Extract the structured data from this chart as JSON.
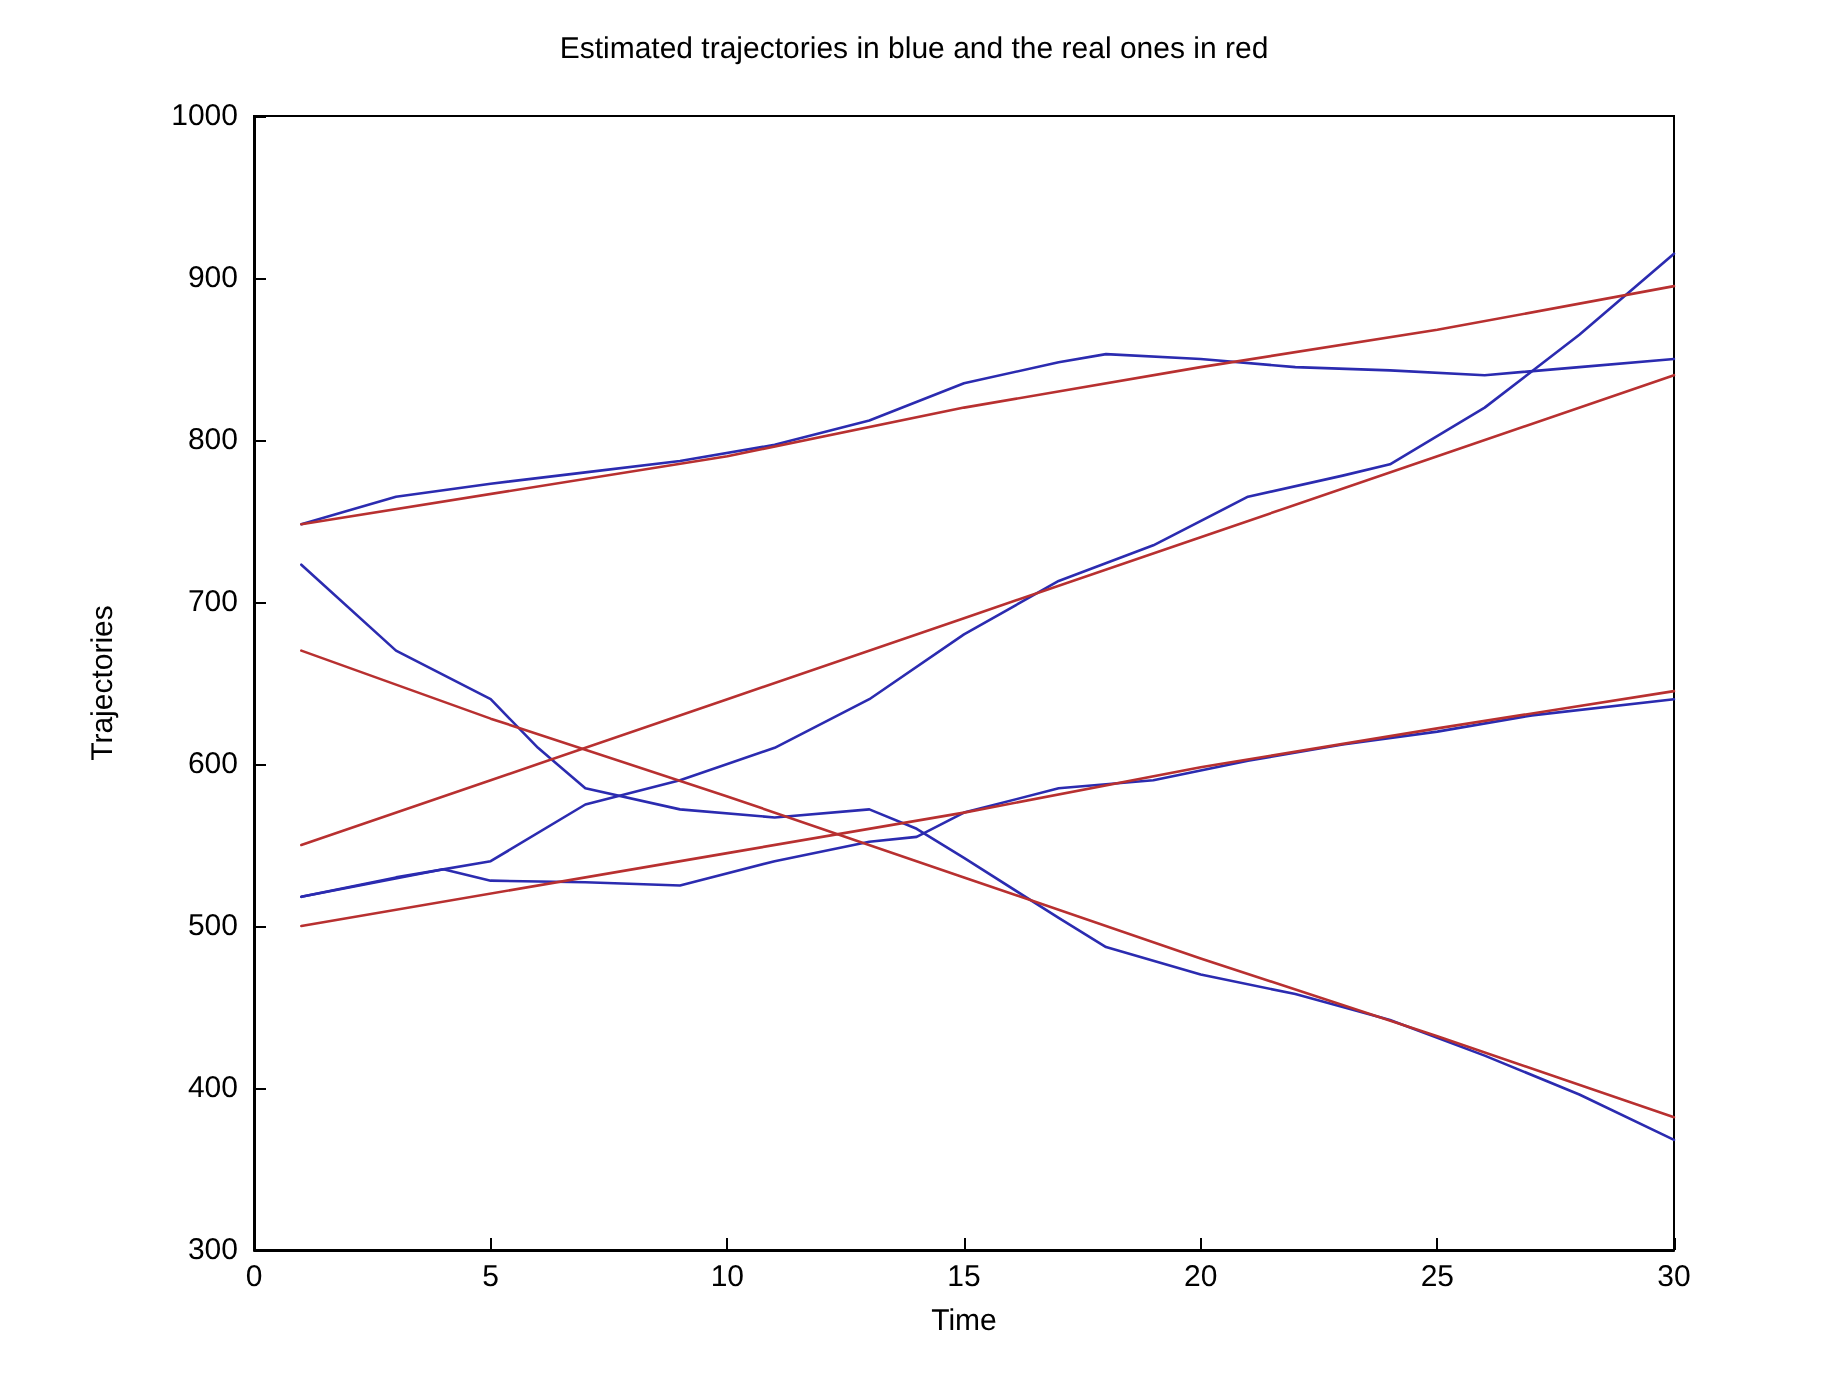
{
  "chart_data": {
    "type": "line",
    "title": "Estimated trajectories in blue and the real ones in red",
    "xlabel": "Time",
    "ylabel": "Trajectories",
    "xlim": [
      0,
      30
    ],
    "xticks": [
      0,
      5,
      10,
      15,
      20,
      25,
      30
    ],
    "ylim": [
      300,
      1000
    ],
    "yticks": [
      300,
      400,
      500,
      600,
      700,
      800,
      900,
      1000
    ],
    "grid": false,
    "marker": "none",
    "line_style": "solid",
    "series": [
      {
        "color": "#2b2bb0",
        "x": [
          1,
          3,
          5,
          7,
          9,
          11,
          13,
          15,
          17,
          18,
          20,
          22,
          24,
          26,
          28,
          30
        ],
        "values": [
          748,
          765,
          773,
          780,
          787,
          797,
          812,
          835,
          848,
          853,
          850,
          845,
          843,
          840,
          845,
          850
        ]
      },
      {
        "color": "#2b2bb0",
        "x": [
          1,
          3,
          5,
          7,
          9,
          11,
          13,
          15,
          17,
          19,
          21,
          23,
          24,
          26,
          28,
          30
        ],
        "values": [
          518,
          530,
          540,
          575,
          590,
          610,
          640,
          680,
          713,
          735,
          765,
          778,
          785,
          820,
          865,
          915
        ]
      },
      {
        "color": "#2b2bb0",
        "x": [
          1,
          4,
          5,
          7,
          9,
          11,
          13,
          14,
          15,
          17,
          19,
          21,
          23,
          25,
          27,
          30
        ],
        "values": [
          518,
          535,
          528,
          527,
          525,
          540,
          552,
          555,
          570,
          585,
          590,
          602,
          612,
          620,
          630,
          640
        ]
      },
      {
        "color": "#2b2bb0",
        "x": [
          1,
          3,
          5,
          6,
          7,
          9,
          11,
          13,
          14,
          15,
          17,
          18,
          20,
          22,
          24,
          26,
          28,
          30
        ],
        "values": [
          723,
          670,
          640,
          610,
          585,
          572,
          567,
          572,
          560,
          542,
          505,
          487,
          470,
          458,
          442,
          420,
          396,
          368
        ]
      },
      {
        "color": "#b83030",
        "x": [
          1,
          10,
          15,
          20,
          25,
          30
        ],
        "values": [
          748,
          790,
          820,
          845,
          868,
          895
        ]
      },
      {
        "color": "#b83030",
        "x": [
          1,
          5,
          10,
          15,
          20,
          25,
          30
        ],
        "values": [
          550,
          590,
          640,
          690,
          740,
          790,
          840
        ]
      },
      {
        "color": "#b83030",
        "x": [
          1,
          10,
          15,
          20,
          25,
          30
        ],
        "values": [
          500,
          545,
          570,
          598,
          622,
          645
        ]
      },
      {
        "color": "#b83030",
        "x": [
          1,
          5,
          10,
          15,
          20,
          25,
          30
        ],
        "values": [
          670,
          628,
          580,
          530,
          480,
          432,
          382
        ]
      }
    ]
  }
}
